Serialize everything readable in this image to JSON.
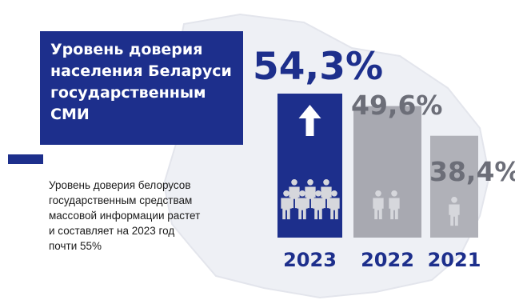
{
  "title": "Уровень доверия\nнаселения Беларуси\nгосударственным\nСМИ",
  "description": "Уровень доверия белорусов\nгосударственным средствам\nмассовой информации растет\nи составляет на 2023 год\nпочти 55%",
  "colors": {
    "primary": "#1d2f8c",
    "bar_gray": "#a8a9b1",
    "bar_gray_last": "#b0b1b8",
    "label_gray": "#6c6e78",
    "icon_light": "#d6d7dc",
    "map_bg": "#eef0f5"
  },
  "icons": {
    "trend": "arrow-up-icon",
    "people": "person-icon"
  },
  "chart_data": {
    "type": "bar",
    "categories": [
      "2023",
      "2022",
      "2021"
    ],
    "values": [
      54.3,
      49.6,
      38.4
    ],
    "value_labels": [
      "54,3%",
      "49,6%",
      "38,4%"
    ],
    "people_icons": [
      7,
      2,
      1
    ],
    "unit": "%",
    "title": "Уровень доверия населения Беларуси государственным СМИ",
    "xlabel": "",
    "ylabel": ""
  }
}
